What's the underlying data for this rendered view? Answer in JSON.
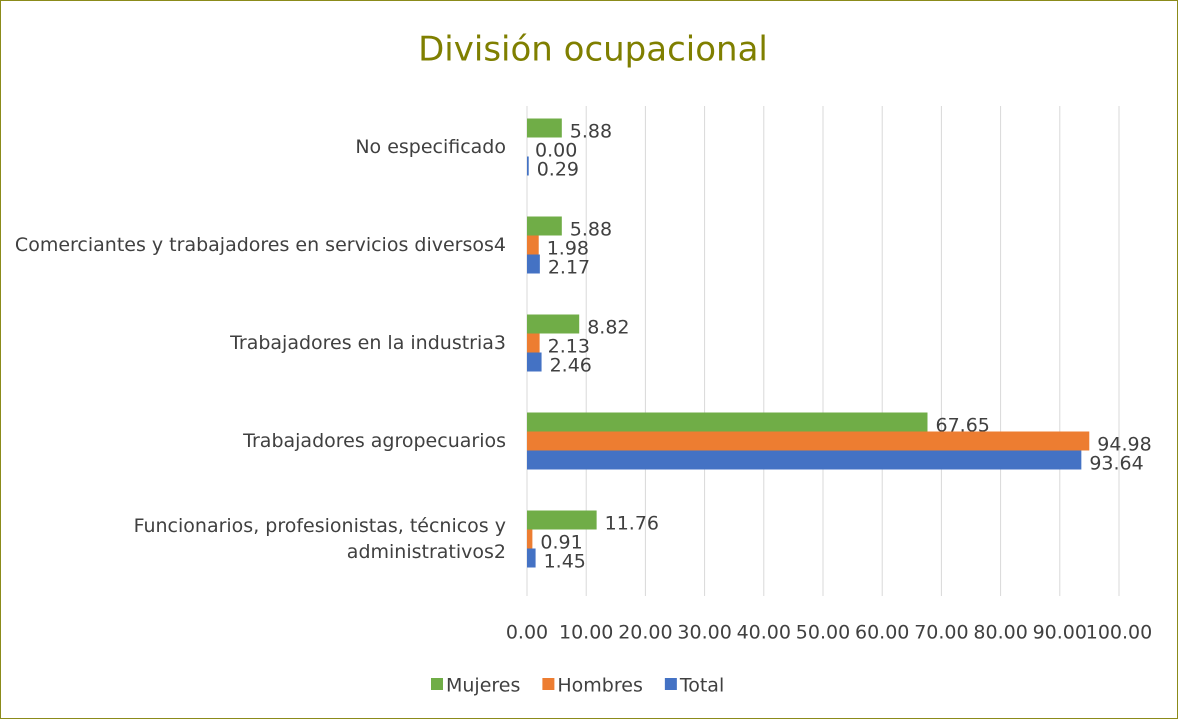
{
  "chart_data": {
    "type": "barh",
    "title": "División ocupacional",
    "categories": [
      "No especificado",
      "Comerciantes y trabajadores en servicios diversos4",
      "Trabajadores en la industria3",
      "Trabajadores agropecuarios",
      "Funcionarios, profesionistas, técnicos y administrativos2"
    ],
    "series": [
      {
        "name": "Mujeres",
        "color": "#70ad47",
        "values": [
          5.88,
          5.88,
          8.82,
          67.65,
          11.76
        ]
      },
      {
        "name": "Hombres",
        "color": "#ed7d31",
        "values": [
          0,
          1.98,
          2.13,
          94.98,
          0.91
        ],
        "value_labels": [
          "0.00",
          "1.98",
          "2.13",
          "94.98",
          "0.91"
        ]
      },
      {
        "name": "Total",
        "color": "#4472c4",
        "values": [
          0.29,
          2.17,
          2.46,
          93.64,
          1.45
        ]
      }
    ],
    "xlim": [
      0,
      100
    ],
    "xticks": [
      {
        "value": 0,
        "label": "0.00"
      },
      {
        "value": 10,
        "label": "10.00"
      },
      {
        "value": 20,
        "label": "20.00"
      },
      {
        "value": 30,
        "label": "30.00"
      },
      {
        "value": 40,
        "label": "40.00"
      },
      {
        "value": 50,
        "label": "50.00"
      },
      {
        "value": 60,
        "label": "60.00"
      },
      {
        "value": 70,
        "label": "70.00"
      },
      {
        "value": 80,
        "label": "80.00"
      },
      {
        "value": 90,
        "label": "90.00"
      },
      {
        "value": 100,
        "label": "100.00"
      }
    ],
    "grid": true,
    "legend": "bottom"
  }
}
